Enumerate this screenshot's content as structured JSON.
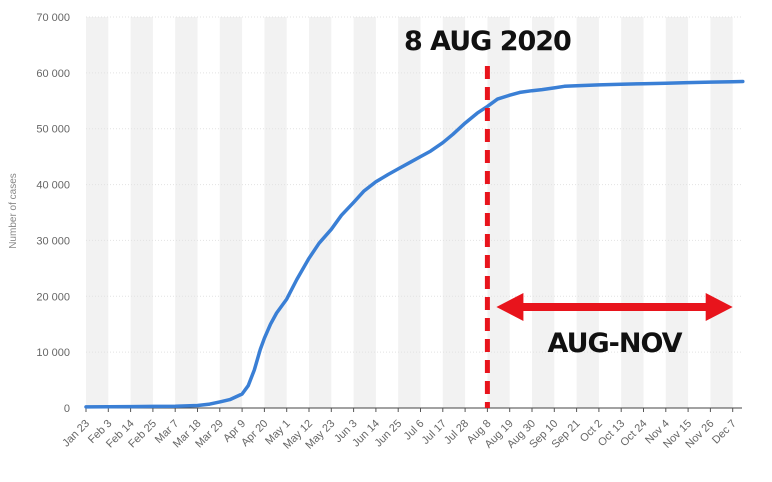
{
  "chart_data": {
    "type": "line",
    "ylabel": "Number of cases",
    "ylim": [
      0,
      70000
    ],
    "y_ticks": [
      "0",
      "10 000",
      "20 000",
      "30 000",
      "40 000",
      "50 000",
      "60 000",
      "70 000"
    ],
    "y_tick_values": [
      0,
      10000,
      20000,
      30000,
      40000,
      50000,
      60000,
      70000
    ],
    "x_ticks": [
      "Jan 23",
      "Feb 3",
      "Feb 14",
      "Feb 25",
      "Mar 7",
      "Mar 18",
      "Mar 29",
      "Apr 9",
      "Apr 20",
      "May 1",
      "May 12",
      "May 23",
      "Jun 3",
      "Jun 14",
      "Jun 25",
      "Jul 6",
      "Jul 17",
      "Jul 28",
      "Aug 8",
      "Aug 19",
      "Aug 30",
      "Sep 10",
      "Sep 21",
      "Oct 2",
      "Oct 13",
      "Oct 24",
      "Nov 4",
      "Nov 15",
      "Nov 26",
      "Dec 7"
    ],
    "grid": "alternating vertical bands",
    "series": [
      {
        "color": "#3a7fd5",
        "x": [
          "Jan 23",
          "Feb 3",
          "Feb 14",
          "Feb 25",
          "Mar 7",
          "Mar 18",
          "Mar 24",
          "Mar 29",
          "Apr 3",
          "Apr 9",
          "Apr 12",
          "Apr 15",
          "Apr 18",
          "Apr 20",
          "Apr 23",
          "Apr 26",
          "May 1",
          "May 6",
          "May 12",
          "May 17",
          "May 23",
          "May 28",
          "Jun 3",
          "Jun 8",
          "Jun 14",
          "Jun 20",
          "Jun 25",
          "Jul 1",
          "Jul 6",
          "Jul 11",
          "Jul 17",
          "Jul 22",
          "Jul 28",
          "Aug 3",
          "Aug 8",
          "Aug 13",
          "Aug 19",
          "Aug 24",
          "Aug 30",
          "Sep 4",
          "Sep 10",
          "Sep 15",
          "Sep 21",
          "Oct 2",
          "Oct 13",
          "Oct 24",
          "Nov 4",
          "Nov 15",
          "Nov 26",
          "Dec 7",
          "Dec 12"
        ],
        "values": [
          200,
          220,
          250,
          280,
          330,
          450,
          700,
          1100,
          1500,
          2500,
          4000,
          6800,
          10500,
          12500,
          15000,
          17000,
          19500,
          23000,
          26800,
          29500,
          32000,
          34500,
          36800,
          38800,
          40500,
          41800,
          42800,
          44000,
          45000,
          46000,
          47500,
          49000,
          51000,
          52800,
          54000,
          55300,
          56000,
          56500,
          56800,
          57000,
          57300,
          57600,
          57700,
          57850,
          57950,
          58050,
          58150,
          58250,
          58350,
          58400,
          58450
        ]
      }
    ],
    "annotations": {
      "marker_date": "Aug 8",
      "marker_label": "8 AUG 2020",
      "marker_color": "#e8141c",
      "range_start": "Aug 8",
      "range_end": "Dec 7",
      "range_label": "AUG-NOV",
      "range_color": "#e8141c"
    }
  }
}
